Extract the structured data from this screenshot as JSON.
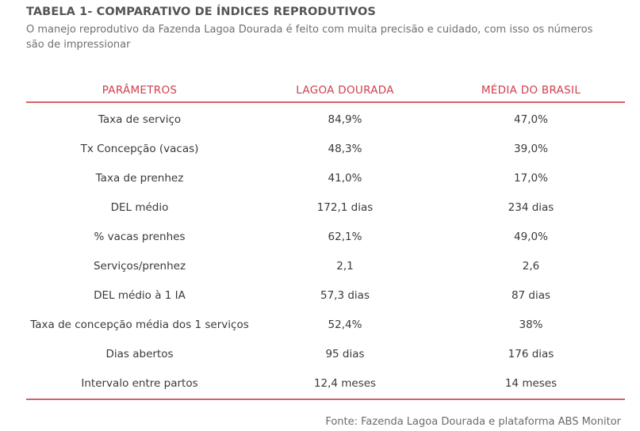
{
  "header": {
    "title": "TABELA 1- COMPARATIVO DE ÍNDICES REPRODUTIVOS",
    "subtitle": "O manejo reprodutivo da Fazenda Lagoa Dourada é feito com muita precisão e cuidado, com isso os números são de impressionar"
  },
  "table": {
    "columns": [
      "PARÂMETROS",
      "LAGOA DOURADA",
      "MÉDIA DO BRASIL"
    ],
    "rows": [
      [
        "Taxa de serviço",
        "84,9%",
        "47,0%"
      ],
      [
        "Tx Concepção (vacas)",
        "48,3%",
        "39,0%"
      ],
      [
        "Taxa de prenhez",
        "41,0%",
        "17,0%"
      ],
      [
        "DEL médio",
        "172,1 dias",
        "234 dias"
      ],
      [
        "% vacas prenhes",
        "62,1%",
        "49,0%"
      ],
      [
        "Serviços/prenhez",
        "2,1",
        "2,6"
      ],
      [
        "DEL médio à 1 IA",
        "57,3 dias",
        "87 dias"
      ],
      [
        "Taxa de concepção média dos 1 serviços",
        "52,4%",
        "38%"
      ],
      [
        "Dias abertos",
        "95 dias",
        "176 dias"
      ],
      [
        "Intervalo entre partos",
        "12,4 meses",
        "14 meses"
      ]
    ]
  },
  "footer": {
    "source": "Fonte: Fazenda Lagoa Dourada e plataforma ABS Monitor"
  },
  "colors": {
    "accent": "#d03f4c",
    "rule": "#d5606a",
    "text": "#3a3a3a",
    "title": "#555555"
  }
}
